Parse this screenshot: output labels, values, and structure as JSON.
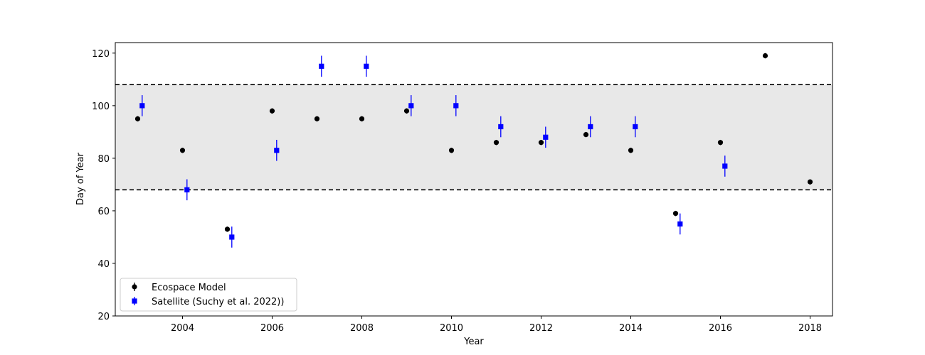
{
  "chart_data": {
    "type": "scatter",
    "title": "",
    "xlabel": "Year",
    "ylabel": "Day of Year",
    "xlim": [
      2002.5,
      2018.5
    ],
    "ylim": [
      20,
      124
    ],
    "xticks": [
      2004,
      2006,
      2008,
      2010,
      2012,
      2014,
      2016,
      2018
    ],
    "yticks": [
      20,
      40,
      60,
      80,
      100,
      120
    ],
    "grid": false,
    "legend_placement": "lower-left",
    "band": {
      "ymin": 68,
      "ymax": 108,
      "color": "#e8e8e8"
    },
    "reference_lines": [
      68,
      108
    ],
    "series": [
      {
        "name": "Ecospace Model",
        "marker": "circle",
        "color": "#000000",
        "x_offset": 0,
        "x": [
          2003,
          2004,
          2005,
          2006,
          2007,
          2008,
          2009,
          2010,
          2011,
          2012,
          2013,
          2014,
          2015,
          2016,
          2017,
          2018
        ],
        "y": [
          95,
          83,
          53,
          98,
          95,
          95,
          98,
          83,
          86,
          86,
          89,
          83,
          59,
          86,
          119,
          71
        ],
        "err": [
          1,
          1,
          1,
          1,
          1,
          1,
          1,
          1,
          1,
          1,
          1,
          1,
          1,
          1,
          1,
          1
        ]
      },
      {
        "name": "Satellite (Suchy et al. 2022))",
        "marker": "square",
        "color": "#0000ff",
        "x_offset": 0.1,
        "x": [
          2003,
          2004,
          2005,
          2006,
          2007,
          2008,
          2009,
          2010,
          2011,
          2012,
          2013,
          2014,
          2015,
          2016
        ],
        "y": [
          100,
          68,
          50,
          83,
          115,
          115,
          100,
          100,
          92,
          88,
          92,
          92,
          55,
          77
        ],
        "err": [
          4,
          4,
          4,
          4,
          4,
          4,
          4,
          4,
          4,
          4,
          4,
          4,
          4,
          4
        ]
      }
    ]
  }
}
